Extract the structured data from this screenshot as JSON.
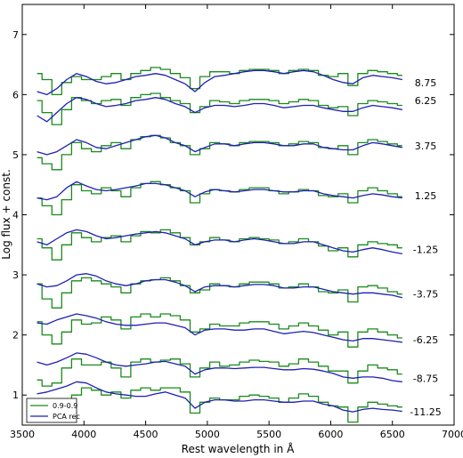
{
  "chart_data": {
    "type": "line",
    "title": "",
    "xlabel": "Rest wavelength in Å",
    "ylabel": "Log flux + const.",
    "xlim": [
      3500,
      7000
    ],
    "ylim": [
      0.5,
      7.5
    ],
    "x_ticks": [
      "3500",
      "4000",
      "4500",
      "5000",
      "5500",
      "6000",
      "6500",
      "7000"
    ],
    "y_ticks": [
      "1",
      "2",
      "3",
      "4",
      "5",
      "6",
      "7"
    ],
    "legend_position": "bottom-left",
    "grid": false,
    "colors": {
      "green": "#1a8a1a",
      "blue": "#1f1fb4"
    },
    "x": [
      3620,
      3700,
      3780,
      3860,
      3940,
      4020,
      4100,
      4180,
      4260,
      4340,
      4420,
      4500,
      4580,
      4660,
      4740,
      4820,
      4900,
      4980,
      5060,
      5140,
      5220,
      5300,
      5380,
      5460,
      5540,
      5620,
      5700,
      5780,
      5860,
      5940,
      6020,
      6100,
      6180,
      6260,
      6340,
      6420,
      6500,
      6580
    ],
    "series": [
      {
        "name": "0.9-0.9",
        "group": "11.25",
        "style": "steps",
        "color": "#1a8a1a",
        "values": [
          0.72,
          0.65,
          0.72,
          0.85,
          1.0,
          1.12,
          1.08,
          1.0,
          1.05,
          0.95,
          1.08,
          1.12,
          1.08,
          1.12,
          1.12,
          1.05,
          0.7,
          0.88,
          0.95,
          0.92,
          0.92,
          0.98,
          1.0,
          0.98,
          0.95,
          0.88,
          0.95,
          1.02,
          0.98,
          0.88,
          0.82,
          0.8,
          0.55,
          0.8,
          0.88,
          0.85,
          0.82,
          0.8
        ]
      },
      {
        "name": "PCA rec",
        "group": "11.25",
        "style": "line",
        "color": "#1f1fb4",
        "values": [
          1.02,
          1.05,
          1.1,
          1.15,
          1.22,
          1.2,
          1.12,
          1.05,
          1.02,
          1.0,
          0.98,
          0.98,
          1.02,
          1.05,
          1.0,
          0.95,
          0.78,
          0.88,
          0.92,
          0.92,
          0.9,
          0.9,
          0.92,
          0.92,
          0.9,
          0.88,
          0.88,
          0.9,
          0.9,
          0.85,
          0.82,
          0.75,
          0.72,
          0.76,
          0.78,
          0.76,
          0.75,
          0.73
        ]
      },
      {
        "name": "0.9-0.9",
        "group": "8.75",
        "style": "steps",
        "color": "#1a8a1a",
        "values": [
          1.25,
          1.15,
          1.2,
          1.45,
          1.6,
          1.5,
          1.5,
          1.55,
          1.45,
          1.3,
          1.55,
          1.6,
          1.55,
          1.58,
          1.6,
          1.52,
          1.3,
          1.45,
          1.55,
          1.48,
          1.5,
          1.55,
          1.58,
          1.56,
          1.55,
          1.48,
          1.52,
          1.6,
          1.55,
          1.48,
          1.4,
          1.4,
          1.2,
          1.4,
          1.5,
          1.45,
          1.42,
          1.35
        ]
      },
      {
        "name": "PCA rec",
        "group": "8.75",
        "style": "line",
        "color": "#1f1fb4",
        "values": [
          1.55,
          1.5,
          1.55,
          1.62,
          1.7,
          1.68,
          1.62,
          1.55,
          1.5,
          1.48,
          1.5,
          1.52,
          1.55,
          1.56,
          1.52,
          1.48,
          1.35,
          1.42,
          1.45,
          1.45,
          1.44,
          1.45,
          1.46,
          1.46,
          1.44,
          1.42,
          1.42,
          1.44,
          1.43,
          1.4,
          1.36,
          1.3,
          1.28,
          1.3,
          1.3,
          1.28,
          1.24,
          1.22
        ]
      },
      {
        "name": "0.9-0.9",
        "group": "6.25",
        "style": "steps",
        "color": "#1a8a1a",
        "values": [
          2.22,
          2.0,
          1.85,
          2.05,
          2.25,
          2.18,
          2.2,
          2.3,
          2.25,
          2.1,
          2.3,
          2.35,
          2.3,
          2.35,
          2.32,
          2.25,
          2.05,
          2.1,
          2.18,
          2.15,
          2.15,
          2.2,
          2.22,
          2.22,
          2.18,
          2.1,
          2.15,
          2.2,
          2.15,
          2.08,
          2.0,
          2.05,
          1.8,
          2.05,
          2.1,
          2.05,
          2.0,
          1.95
        ]
      },
      {
        "name": "PCA rec",
        "group": "6.25",
        "style": "line",
        "color": "#1f1fb4",
        "values": [
          2.2,
          2.18,
          2.25,
          2.3,
          2.35,
          2.32,
          2.28,
          2.22,
          2.18,
          2.16,
          2.16,
          2.18,
          2.2,
          2.2,
          2.16,
          2.12,
          2.0,
          2.08,
          2.1,
          2.1,
          2.08,
          2.08,
          2.1,
          2.1,
          2.06,
          2.02,
          2.04,
          2.06,
          2.04,
          2.0,
          1.96,
          1.92,
          1.9,
          1.94,
          1.94,
          1.92,
          1.9,
          1.88
        ]
      },
      {
        "name": "0.9-0.9",
        "group": "3.75",
        "style": "steps",
        "color": "#1a8a1a",
        "values": [
          2.85,
          2.6,
          2.45,
          2.7,
          2.9,
          2.95,
          2.9,
          2.85,
          2.8,
          2.7,
          2.85,
          2.9,
          2.92,
          2.95,
          2.9,
          2.82,
          2.7,
          2.75,
          2.85,
          2.82,
          2.8,
          2.85,
          2.88,
          2.88,
          2.85,
          2.78,
          2.8,
          2.85,
          2.8,
          2.72,
          2.7,
          2.75,
          2.55,
          2.8,
          2.82,
          2.78,
          2.72,
          2.68
        ]
      },
      {
        "name": "PCA rec",
        "group": "3.75",
        "style": "line",
        "color": "#1f1fb4",
        "values": [
          2.85,
          2.8,
          2.82,
          2.9,
          3.0,
          3.02,
          2.98,
          2.9,
          2.85,
          2.82,
          2.85,
          2.9,
          2.92,
          2.92,
          2.88,
          2.82,
          2.72,
          2.8,
          2.82,
          2.82,
          2.8,
          2.82,
          2.84,
          2.84,
          2.82,
          2.78,
          2.78,
          2.8,
          2.8,
          2.76,
          2.72,
          2.7,
          2.68,
          2.7,
          2.7,
          2.68,
          2.66,
          2.62
        ]
      },
      {
        "name": "0.9-0.9",
        "group": "1.25",
        "style": "steps",
        "color": "#1a8a1a",
        "values": [
          3.6,
          3.45,
          3.25,
          3.5,
          3.7,
          3.62,
          3.55,
          3.62,
          3.65,
          3.55,
          3.65,
          3.72,
          3.7,
          3.75,
          3.7,
          3.62,
          3.5,
          3.55,
          3.62,
          3.58,
          3.55,
          3.6,
          3.62,
          3.6,
          3.58,
          3.52,
          3.55,
          3.6,
          3.55,
          3.48,
          3.4,
          3.45,
          3.3,
          3.5,
          3.55,
          3.52,
          3.5,
          3.45
        ]
      },
      {
        "name": "PCA rec",
        "group": "1.25",
        "style": "line",
        "color": "#1f1fb4",
        "values": [
          3.55,
          3.5,
          3.6,
          3.7,
          3.75,
          3.72,
          3.65,
          3.6,
          3.62,
          3.65,
          3.68,
          3.7,
          3.72,
          3.7,
          3.65,
          3.6,
          3.5,
          3.55,
          3.58,
          3.58,
          3.55,
          3.58,
          3.6,
          3.58,
          3.55,
          3.52,
          3.52,
          3.55,
          3.55,
          3.5,
          3.45,
          3.4,
          3.38,
          3.42,
          3.45,
          3.42,
          3.38,
          3.35
        ]
      },
      {
        "name": "0.9-0.9",
        "group": "-1.25",
        "style": "steps",
        "color": "#1a8a1a",
        "values": [
          4.28,
          4.15,
          4.0,
          4.25,
          4.5,
          4.4,
          4.35,
          4.45,
          4.4,
          4.3,
          4.45,
          4.52,
          4.55,
          4.5,
          4.45,
          4.4,
          4.2,
          4.35,
          4.42,
          4.4,
          4.38,
          4.42,
          4.45,
          4.45,
          4.4,
          4.35,
          4.38,
          4.42,
          4.4,
          4.32,
          4.3,
          4.35,
          4.2,
          4.4,
          4.45,
          4.4,
          4.35,
          4.3
        ]
      },
      {
        "name": "PCA rec",
        "group": "-1.25",
        "style": "line",
        "color": "#1f1fb4",
        "values": [
          4.28,
          4.25,
          4.3,
          4.45,
          4.55,
          4.48,
          4.42,
          4.4,
          4.42,
          4.45,
          4.48,
          4.52,
          4.52,
          4.5,
          4.45,
          4.4,
          4.3,
          4.38,
          4.42,
          4.4,
          4.38,
          4.4,
          4.42,
          4.42,
          4.4,
          4.38,
          4.38,
          4.4,
          4.4,
          4.35,
          4.32,
          4.3,
          4.28,
          4.32,
          4.35,
          4.33,
          4.3,
          4.28
        ]
      },
      {
        "name": "0.9-0.9",
        "group": "-3.75",
        "style": "steps",
        "color": "#1a8a1a",
        "values": [
          4.95,
          4.85,
          4.75,
          5.0,
          5.2,
          5.1,
          5.05,
          5.15,
          5.2,
          5.1,
          5.25,
          5.3,
          5.32,
          5.28,
          5.2,
          5.15,
          5.0,
          5.1,
          5.2,
          5.18,
          5.15,
          5.2,
          5.22,
          5.22,
          5.2,
          5.15,
          5.18,
          5.22,
          5.2,
          5.12,
          5.1,
          5.15,
          5.0,
          5.2,
          5.25,
          5.22,
          5.18,
          5.15
        ]
      },
      {
        "name": "PCA rec",
        "group": "-3.75",
        "style": "line",
        "color": "#1f1fb4",
        "values": [
          5.05,
          5.0,
          5.05,
          5.15,
          5.25,
          5.2,
          5.12,
          5.1,
          5.15,
          5.2,
          5.25,
          5.3,
          5.32,
          5.28,
          5.2,
          5.15,
          5.05,
          5.12,
          5.18,
          5.18,
          5.15,
          5.18,
          5.2,
          5.2,
          5.18,
          5.15,
          5.15,
          5.18,
          5.18,
          5.12,
          5.1,
          5.08,
          5.08,
          5.15,
          5.2,
          5.18,
          5.15,
          5.12
        ]
      },
      {
        "name": "0.9-0.9",
        "group": "-6.25",
        "style": "steps",
        "color": "#1a8a1a",
        "values": [
          5.9,
          5.7,
          5.5,
          5.75,
          5.95,
          5.9,
          5.85,
          5.9,
          5.92,
          5.82,
          5.95,
          6.0,
          6.02,
          5.95,
          5.9,
          5.85,
          5.7,
          5.8,
          5.9,
          5.88,
          5.85,
          5.9,
          5.92,
          5.92,
          5.9,
          5.85,
          5.88,
          5.92,
          5.9,
          5.82,
          5.78,
          5.8,
          5.65,
          5.85,
          5.9,
          5.88,
          5.85,
          5.82
        ]
      },
      {
        "name": "PCA rec",
        "group": "-6.25",
        "style": "line",
        "color": "#1f1fb4",
        "values": [
          5.65,
          5.55,
          5.7,
          5.85,
          5.95,
          5.92,
          5.85,
          5.8,
          5.82,
          5.85,
          5.9,
          5.92,
          5.95,
          5.92,
          5.85,
          5.8,
          5.7,
          5.78,
          5.82,
          5.82,
          5.8,
          5.82,
          5.85,
          5.85,
          5.82,
          5.78,
          5.8,
          5.82,
          5.82,
          5.78,
          5.75,
          5.72,
          5.72,
          5.78,
          5.82,
          5.8,
          5.78,
          5.75
        ]
      },
      {
        "name": "0.9-0.9",
        "group": "-8.75",
        "style": "steps",
        "color": "#1a8a1a",
        "values": [
          6.35,
          6.25,
          6.0,
          6.2,
          6.3,
          6.25,
          6.25,
          6.3,
          6.35,
          6.25,
          6.35,
          6.4,
          6.45,
          6.42,
          6.35,
          6.28,
          6.1,
          6.3,
          6.38,
          6.38,
          6.35,
          6.4,
          6.42,
          6.42,
          6.4,
          6.35,
          6.4,
          6.42,
          6.4,
          6.32,
          6.3,
          6.35,
          6.15,
          6.35,
          6.4,
          6.38,
          6.35,
          6.32
        ]
      },
      {
        "name": "PCA rec",
        "group": "-8.75",
        "style": "line",
        "color": "#1f1fb4",
        "values": [
          6.05,
          6.0,
          6.1,
          6.25,
          6.35,
          6.3,
          6.22,
          6.18,
          6.2,
          6.25,
          6.3,
          6.32,
          6.35,
          6.32,
          6.25,
          6.18,
          6.05,
          6.2,
          6.3,
          6.32,
          6.35,
          6.38,
          6.4,
          6.4,
          6.38,
          6.35,
          6.38,
          6.4,
          6.38,
          6.32,
          6.25,
          6.2,
          6.18,
          6.28,
          6.32,
          6.3,
          6.28,
          6.25
        ]
      }
    ],
    "offset_labels": [
      {
        "text": "8.75",
        "y": 6.2
      },
      {
        "text": "6.25",
        "y": 5.9
      },
      {
        "text": "3.75",
        "y": 5.15
      },
      {
        "text": "1.25",
        "y": 4.32
      },
      {
        "text": "-1.25",
        "y": 3.42
      },
      {
        "text": "-3.75",
        "y": 2.68
      },
      {
        "text": "-6.25",
        "y": 1.92
      },
      {
        "text": "-8.75",
        "y": 1.28
      },
      {
        "text": "-11.25",
        "y": 0.72
      }
    ],
    "legend": [
      {
        "label": "0.9-0.9",
        "color": "#1a8a1a"
      },
      {
        "label": "PCA rec",
        "color": "#1f1fb4"
      }
    ]
  }
}
